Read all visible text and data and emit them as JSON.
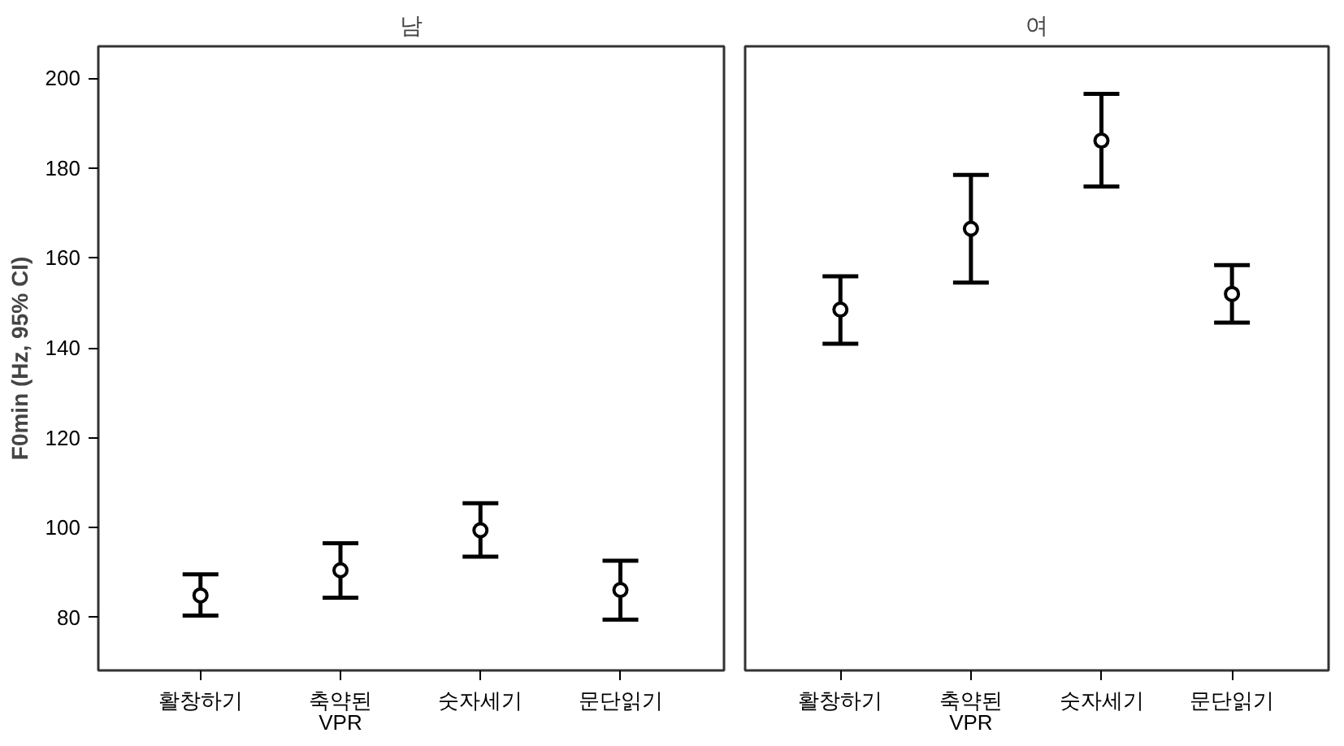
{
  "chart_data": [
    {
      "type": "scatter",
      "title": "남",
      "ylabel": "F0min (Hz, 95% CI)",
      "categories": [
        "활창하기",
        "축약된\nVPR",
        "숫자세기",
        "문단읽기"
      ],
      "series": [
        {
          "color": "#000000",
          "values": [
            84.9,
            90.5,
            99.4,
            86.1
          ],
          "errors": [
            [
              80.4,
              89.6
            ],
            [
              84.4,
              96.5
            ],
            [
              93.5,
              105.4
            ],
            [
              79.5,
              92.6
            ]
          ]
        }
      ],
      "ylim": [
        68.2,
        207.1
      ],
      "yticks": [
        80,
        100,
        120,
        140,
        160,
        180,
        200
      ],
      "marker": "circle",
      "grid": false
    },
    {
      "type": "scatter",
      "title": "여",
      "categories": [
        "활창하기",
        "축약된\nVPR",
        "숫자세기",
        "문단읽기"
      ],
      "series": [
        {
          "color": "#000000",
          "values": [
            148.5,
            166.5,
            186.1,
            152.0
          ],
          "errors": [
            [
              140.9,
              155.9
            ],
            [
              154.5,
              178.5
            ],
            [
              175.9,
              196.5
            ],
            [
              145.6,
              158.4
            ]
          ]
        }
      ],
      "ylim": [
        68.2,
        207.1
      ],
      "yticks": [
        80,
        100,
        120,
        140,
        160,
        180,
        200
      ],
      "marker": "circle",
      "grid": false,
      "tick_labels": "x"
    }
  ]
}
